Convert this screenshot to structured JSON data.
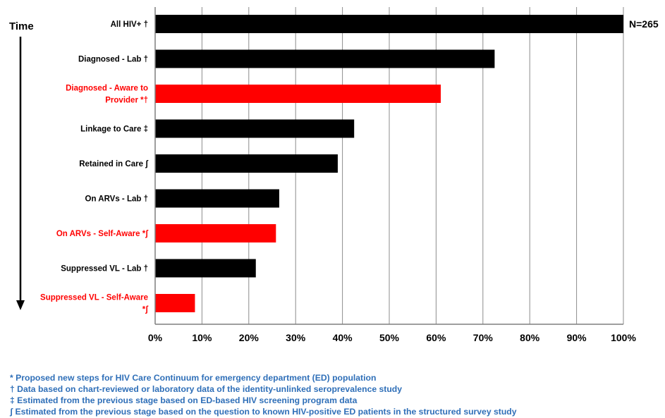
{
  "chart_data": {
    "type": "bar",
    "orientation": "horizontal",
    "categories": [
      "All HIV+ †",
      "Diagnosed - Lab †",
      "Diagnosed - Aware to Provider *†",
      "Linkage to Care ‡",
      "Retained in Care ʃ",
      "On ARVs - Lab †",
      "On ARVs - Self-Aware *ʃ",
      "Suppressed VL - Lab †",
      "Suppressed VL - Self-Aware *ʃ"
    ],
    "category_lines": [
      [
        "All HIV+ †"
      ],
      [
        "Diagnosed - Lab †"
      ],
      [
        "Diagnosed - Aware to",
        "Provider *†"
      ],
      [
        "Linkage to Care ‡"
      ],
      [
        "Retained in Care ʃ"
      ],
      [
        "On ARVs - Lab †"
      ],
      [
        "On ARVs - Self-Aware *ʃ"
      ],
      [
        "Suppressed VL - Lab †"
      ],
      [
        "Suppressed VL - Self-Aware",
        "*ʃ"
      ]
    ],
    "values": [
      100,
      72.5,
      61,
      42.5,
      39,
      26.5,
      25.8,
      21.5,
      8.5
    ],
    "bar_colors": [
      "#000000",
      "#000000",
      "#ff0000",
      "#000000",
      "#000000",
      "#000000",
      "#ff0000",
      "#000000",
      "#ff0000"
    ],
    "label_colors": [
      "#000000",
      "#000000",
      "#ff0000",
      "#000000",
      "#000000",
      "#000000",
      "#ff0000",
      "#000000",
      "#ff0000"
    ],
    "xticks": [
      "0%",
      "10%",
      "20%",
      "30%",
      "40%",
      "50%",
      "60%",
      "70%",
      "80%",
      "90%",
      "100%"
    ],
    "xlim": [
      0,
      100
    ],
    "grid": true,
    "annotation": "N=265",
    "time_label": "Time"
  },
  "footnotes": [
    "* Proposed new steps for HIV Care Continuum for emergency department (ED) population",
    "† Data based on chart-reviewed or laboratory data of the identity-unlinked seroprevalence study",
    "‡ Estimated from the previous stage based on ED-based HIV screening program data",
    "ʃ  Estimated from the previous stage based on the question to known HIV-positive ED patients in the structured survey study"
  ]
}
